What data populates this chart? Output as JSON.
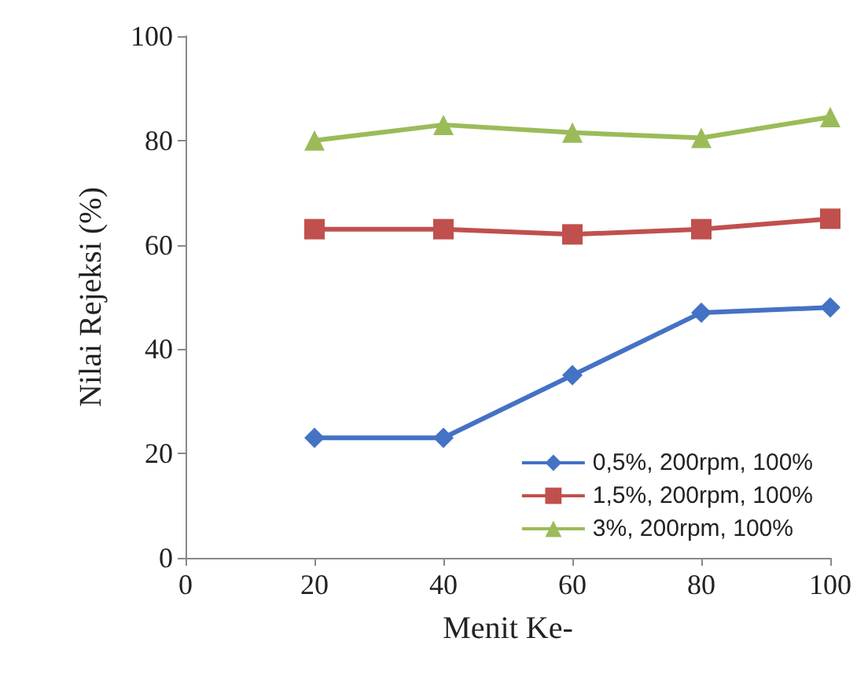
{
  "chart_data": {
    "type": "line",
    "xlabel": "Menit Ke-",
    "ylabel": "Nilai Rejeksi (%)",
    "x": [
      20,
      40,
      60,
      80,
      100
    ],
    "xlim": [
      0,
      100
    ],
    "xticks": [
      0,
      20,
      40,
      60,
      80,
      100
    ],
    "ylim": [
      0,
      100
    ],
    "yticks": [
      0,
      20,
      40,
      60,
      80,
      100
    ],
    "grid": false,
    "legend": "bottom right",
    "series": [
      {
        "name": "0,5%, 200rpm, 100%",
        "color": "#4472c4",
        "marker": "diamond",
        "values": [
          23,
          23,
          35,
          47,
          48
        ]
      },
      {
        "name": "1,5%, 200rpm, 100%",
        "color": "#c0504d",
        "marker": "square",
        "values": [
          63,
          63,
          62,
          63,
          65
        ]
      },
      {
        "name": "3%, 200rpm, 100%",
        "color": "#9bbb59",
        "marker": "triangle",
        "values": [
          80,
          83,
          81.5,
          80.5,
          84.5
        ]
      }
    ]
  }
}
